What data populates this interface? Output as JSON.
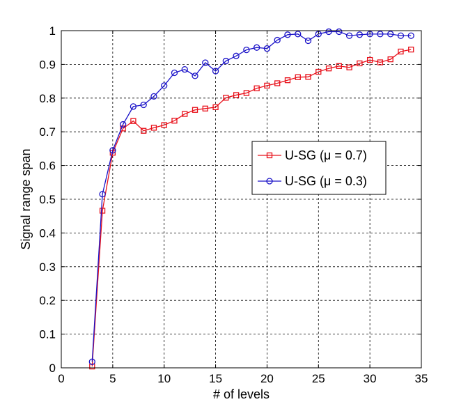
{
  "chart_data": {
    "type": "line",
    "title": "",
    "xlabel": "# of levels",
    "ylabel": "Signal range span",
    "xlim": [
      0,
      35
    ],
    "ylim": [
      0,
      1
    ],
    "xticks": [
      0,
      5,
      10,
      15,
      20,
      25,
      30,
      35
    ],
    "yticks": [
      0,
      0.1,
      0.2,
      0.3,
      0.4,
      0.5,
      0.6,
      0.7,
      0.8,
      0.9,
      1
    ],
    "grid": true,
    "legend_position": "center-right",
    "series": [
      {
        "name": "U-SG (μ = 0.7)",
        "color": "#e8101a",
        "marker": "square",
        "x": [
          3,
          4,
          5,
          6,
          7,
          8,
          9,
          10,
          11,
          12,
          13,
          14,
          15,
          16,
          17,
          18,
          19,
          20,
          21,
          22,
          23,
          24,
          25,
          26,
          27,
          28,
          29,
          30,
          31,
          32,
          33,
          34
        ],
        "y": [
          0.004,
          0.466,
          0.638,
          0.71,
          0.732,
          0.703,
          0.712,
          0.72,
          0.733,
          0.753,
          0.765,
          0.769,
          0.773,
          0.801,
          0.809,
          0.815,
          0.829,
          0.837,
          0.844,
          0.853,
          0.862,
          0.863,
          0.878,
          0.888,
          0.895,
          0.891,
          0.903,
          0.913,
          0.906,
          0.915,
          0.938,
          0.944
        ]
      },
      {
        "name": "U-SG (μ = 0.3)",
        "color": "#1a12c8",
        "marker": "circle",
        "x": [
          3,
          4,
          5,
          6,
          7,
          8,
          9,
          10,
          11,
          12,
          13,
          14,
          15,
          16,
          17,
          18,
          19,
          20,
          21,
          22,
          23,
          24,
          25,
          26,
          27,
          28,
          29,
          30,
          31,
          32,
          33,
          34
        ],
        "y": [
          0.018,
          0.515,
          0.645,
          0.722,
          0.775,
          0.78,
          0.805,
          0.837,
          0.875,
          0.885,
          0.866,
          0.905,
          0.88,
          0.91,
          0.925,
          0.943,
          0.95,
          0.947,
          0.972,
          0.988,
          0.99,
          0.97,
          0.99,
          0.997,
          0.997,
          0.985,
          0.988,
          0.99,
          0.99,
          0.99,
          0.985,
          0.985
        ]
      }
    ]
  }
}
